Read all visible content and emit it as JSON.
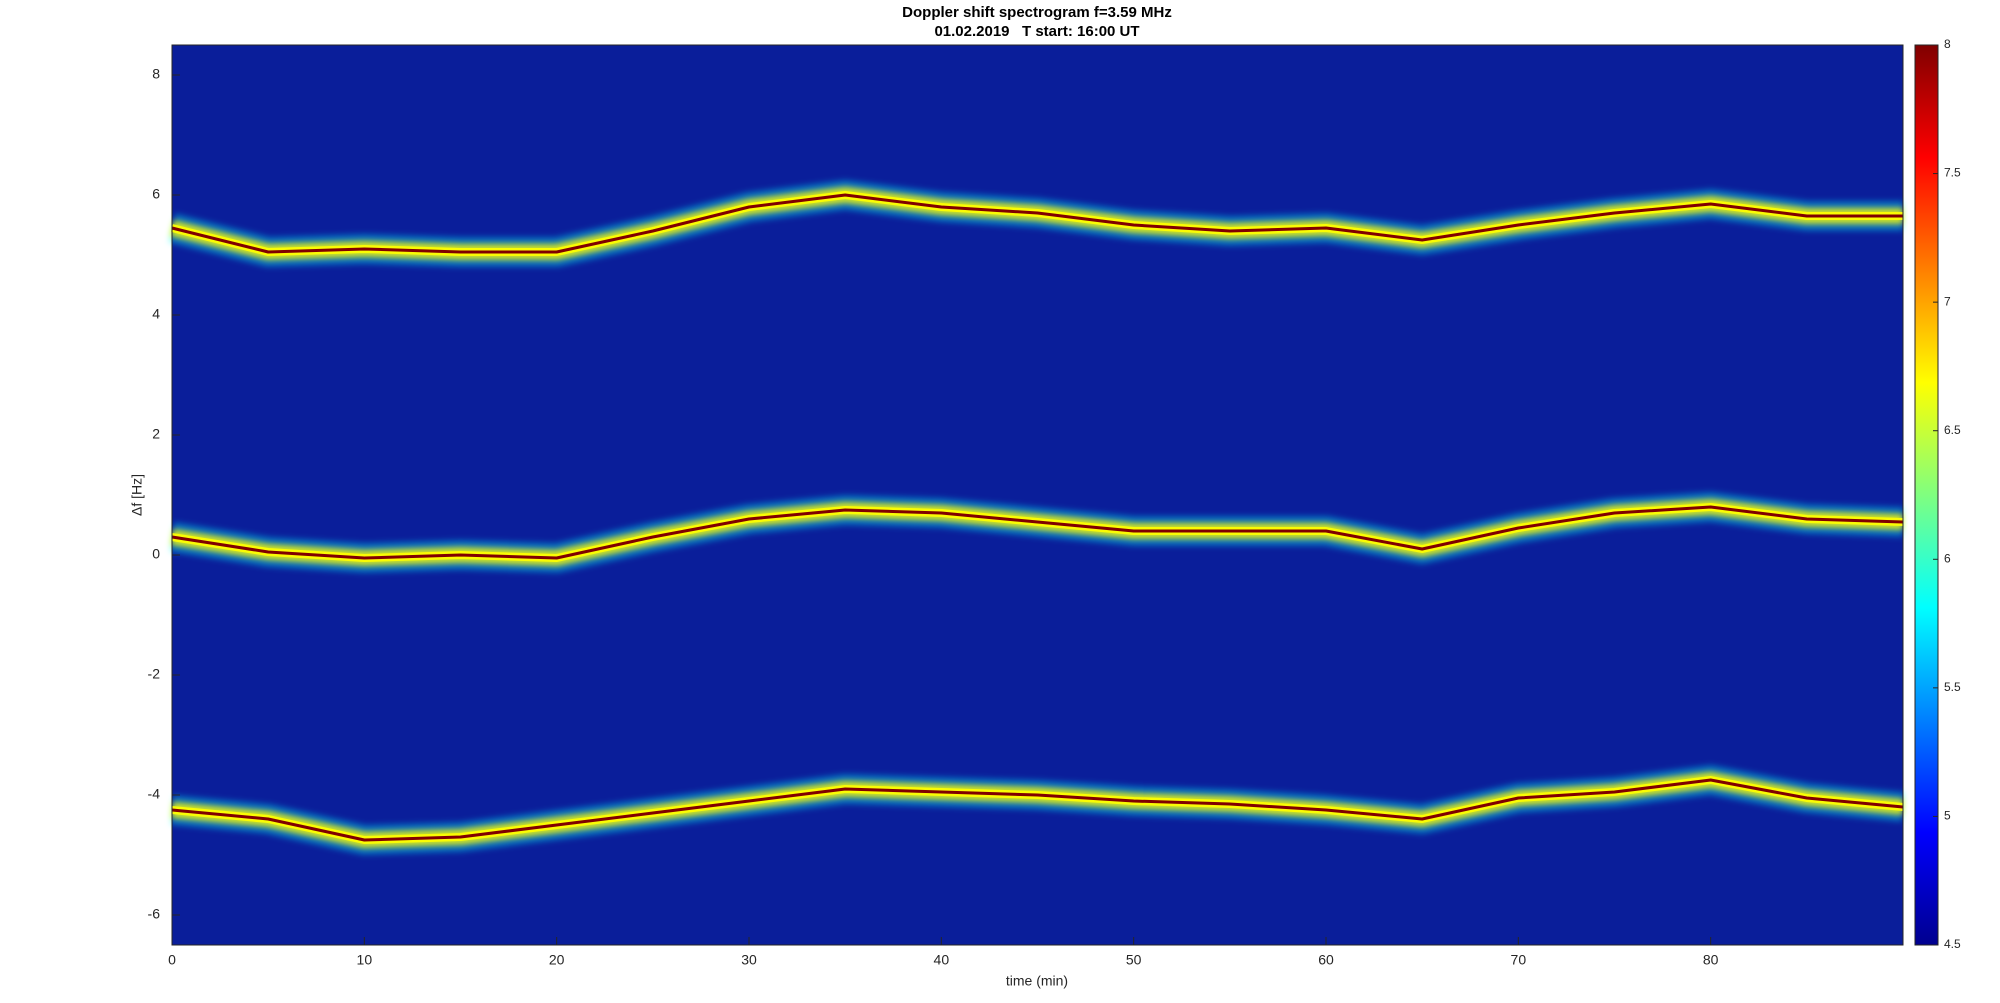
{
  "chart_data": {
    "type": "spectrogram",
    "title": "Doppler shift spectrogram f=3.59 MHz",
    "subtitle": "01.02.2019   T start: 16:00 UT",
    "xlabel": "time (min)",
    "ylabel": "Δf [Hz]",
    "x": [
      0,
      5,
      10,
      15,
      20,
      25,
      30,
      35,
      40,
      45,
      50,
      55,
      60,
      65,
      70,
      75,
      80,
      85,
      90
    ],
    "series": [
      {
        "values": [
          5.45,
          5.05,
          5.1,
          5.05,
          5.05,
          5.4,
          5.8,
          6.0,
          5.8,
          5.7,
          5.5,
          5.4,
          5.45,
          5.25,
          5.5,
          5.7,
          5.85,
          5.65,
          5.65
        ]
      },
      {
        "values": [
          0.3,
          0.05,
          -0.05,
          0.0,
          -0.05,
          0.3,
          0.6,
          0.75,
          0.7,
          0.55,
          0.4,
          0.4,
          0.4,
          0.1,
          0.45,
          0.7,
          0.8,
          0.6,
          0.55
        ]
      },
      {
        "values": [
          -4.25,
          -4.4,
          -4.75,
          -4.7,
          -4.5,
          -4.3,
          -4.1,
          -3.9,
          -3.95,
          -4.0,
          -4.1,
          -4.15,
          -4.25,
          -4.4,
          -4.05,
          -3.95,
          -3.75,
          -4.05,
          -4.2
        ]
      }
    ],
    "xlim": [
      0,
      90
    ],
    "xticks": [
      0,
      10,
      20,
      30,
      40,
      50,
      60,
      70,
      80
    ],
    "ylim": [
      -6.5,
      8.5
    ],
    "yticks": [
      -6,
      -4,
      -2,
      0,
      2,
      4,
      6,
      8
    ],
    "colormap": "jet",
    "clim": [
      4.5,
      8
    ],
    "cticks": [
      4.5,
      5,
      5.5,
      6,
      6.5,
      7,
      7.5,
      8
    ]
  }
}
